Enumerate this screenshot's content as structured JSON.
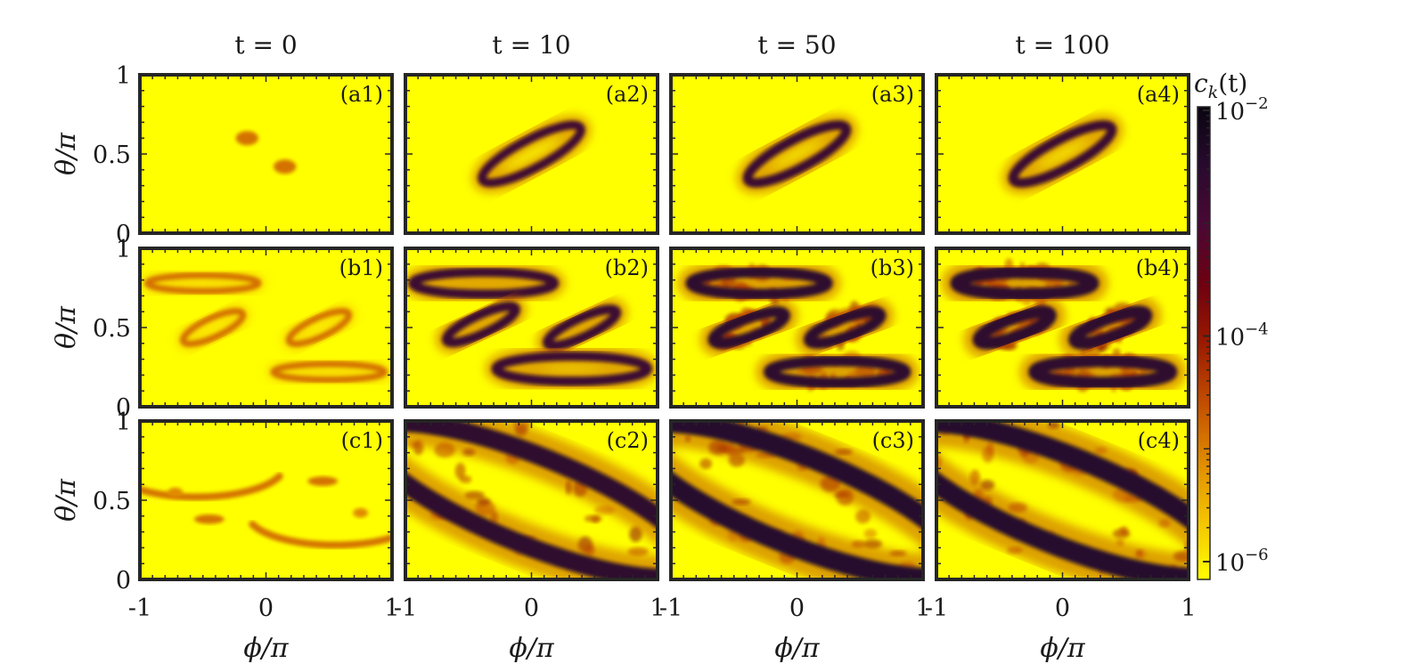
{
  "chart_data": {
    "type": "heatmap",
    "columns": [
      "t = 0",
      "t = 10",
      "t = 50",
      "t = 100"
    ],
    "rows": [
      "a",
      "b",
      "c"
    ],
    "panel_labels": [
      [
        "(a1)",
        "(a2)",
        "(a3)",
        "(a4)"
      ],
      [
        "(b1)",
        "(b2)",
        "(b3)",
        "(b4)"
      ],
      [
        "(c1)",
        "(c2)",
        "(c3)",
        "(c4)"
      ]
    ],
    "xlabel": "ϕ/π",
    "ylabel": "θ/π",
    "xlim": [
      -1,
      1
    ],
    "ylim": [
      0,
      1
    ],
    "xticks": [
      -1,
      0,
      1
    ],
    "xtick_labels": [
      "-1",
      "0",
      "1"
    ],
    "yticks": [
      0,
      0.5,
      1
    ],
    "ytick_labels": [
      "0",
      "0.5",
      "1"
    ],
    "colorbar": {
      "label": "c_k(t)",
      "label_text": "c",
      "label_sub": "k",
      "label_rest": "(t)",
      "scale": "log",
      "range": [
        1e-06,
        0.01
      ],
      "ticks": [
        {
          "value": 0.01,
          "base": "10",
          "exp": "−2"
        },
        {
          "value": 0.0001,
          "base": "10",
          "exp": "−4"
        },
        {
          "value": 1e-06,
          "base": "10",
          "exp": "−6"
        }
      ],
      "colormap": [
        "#ffff00",
        "#f4c300",
        "#e08a00",
        "#c24d00",
        "#9b1a00",
        "#6e0010",
        "#4a0835",
        "#280a2e",
        "#0a0510"
      ]
    },
    "panels": [
      [
        {
          "background_level": 0,
          "blobs": [
            {
              "phi": -0.15,
              "theta": 0.6,
              "rphi": 0.045,
              "rtheta": 0.045,
              "level": 0.3
            },
            {
              "phi": 0.15,
              "theta": 0.42,
              "rphi": 0.045,
              "rtheta": 0.045,
              "level": 0.3
            }
          ]
        },
        {
          "background_level": 0,
          "rings": [
            {
              "phi": 0.0,
              "theta": 0.5,
              "rphi": 0.22,
              "rtheta": 0.09,
              "angle": 28,
              "width": 0.055,
              "level": 0.78
            }
          ]
        },
        {
          "background_level": 0,
          "rings": [
            {
              "phi": 0.0,
              "theta": 0.5,
              "rphi": 0.22,
              "rtheta": 0.09,
              "angle": 28,
              "width": 0.06,
              "level": 0.8
            }
          ]
        },
        {
          "background_level": 0,
          "rings": [
            {
              "phi": 0.0,
              "theta": 0.5,
              "rphi": 0.22,
              "rtheta": 0.09,
              "angle": 28,
              "width": 0.06,
              "level": 0.8
            }
          ]
        }
      ],
      [
        {
          "background_level": 0,
          "rings": [
            {
              "phi": -0.5,
              "theta": 0.78,
              "rphi": 0.22,
              "rtheta": 0.05,
              "angle": 0,
              "width": 0.04,
              "level": 0.3
            },
            {
              "phi": -0.42,
              "theta": 0.5,
              "rphi": 0.13,
              "rtheta": 0.06,
              "angle": 25,
              "width": 0.04,
              "level": 0.3
            },
            {
              "phi": 0.42,
              "theta": 0.5,
              "rphi": 0.13,
              "rtheta": 0.06,
              "angle": 25,
              "width": 0.04,
              "level": 0.3
            },
            {
              "phi": 0.5,
              "theta": 0.22,
              "rphi": 0.22,
              "rtheta": 0.05,
              "angle": 0,
              "width": 0.04,
              "level": 0.3
            }
          ]
        },
        {
          "background_level": 0,
          "rings": [
            {
              "phi": -0.38,
              "theta": 0.78,
              "rphi": 0.28,
              "rtheta": 0.07,
              "angle": 0,
              "width": 0.06,
              "level": 0.8
            },
            {
              "phi": -0.4,
              "theta": 0.52,
              "rphi": 0.15,
              "rtheta": 0.06,
              "angle": 25,
              "width": 0.06,
              "level": 0.8
            },
            {
              "phi": 0.4,
              "theta": 0.5,
              "rphi": 0.15,
              "rtheta": 0.06,
              "angle": 25,
              "width": 0.06,
              "level": 0.8
            },
            {
              "phi": 0.32,
              "theta": 0.24,
              "rphi": 0.3,
              "rtheta": 0.08,
              "angle": 0,
              "width": 0.06,
              "level": 0.8
            }
          ]
        },
        {
          "background_level": 0,
          "noise": 0.35,
          "rings": [
            {
              "phi": -0.3,
              "theta": 0.78,
              "rphi": 0.27,
              "rtheta": 0.07,
              "angle": 0,
              "width": 0.07,
              "level": 0.85
            },
            {
              "phi": -0.38,
              "theta": 0.5,
              "rphi": 0.15,
              "rtheta": 0.06,
              "angle": 20,
              "width": 0.07,
              "level": 0.85
            },
            {
              "phi": 0.38,
              "theta": 0.5,
              "rphi": 0.15,
              "rtheta": 0.06,
              "angle": 20,
              "width": 0.07,
              "level": 0.85
            },
            {
              "phi": 0.32,
              "theta": 0.22,
              "rphi": 0.27,
              "rtheta": 0.07,
              "angle": 0,
              "width": 0.07,
              "level": 0.85
            }
          ]
        },
        {
          "background_level": 0,
          "noise": 0.55,
          "rings": [
            {
              "phi": -0.3,
              "theta": 0.78,
              "rphi": 0.27,
              "rtheta": 0.07,
              "angle": 0,
              "width": 0.08,
              "level": 0.85
            },
            {
              "phi": -0.38,
              "theta": 0.5,
              "rphi": 0.15,
              "rtheta": 0.06,
              "angle": 20,
              "width": 0.08,
              "level": 0.85
            },
            {
              "phi": 0.38,
              "theta": 0.5,
              "rphi": 0.15,
              "rtheta": 0.06,
              "angle": 20,
              "width": 0.08,
              "level": 0.85
            },
            {
              "phi": 0.32,
              "theta": 0.22,
              "rphi": 0.27,
              "rtheta": 0.07,
              "angle": 0,
              "width": 0.08,
              "level": 0.85
            }
          ]
        }
      ],
      [
        {
          "background_level": 0,
          "arcs": [
            {
              "phi": -0.55,
              "theta": 0.72,
              "rphi": 0.35,
              "rtheta": 0.2,
              "start": 200,
              "end": 340,
              "width": 0.045,
              "level": 0.3
            },
            {
              "phi": 0.55,
              "theta": 0.28,
              "rphi": 0.35,
              "rtheta": 0.2,
              "start": 20,
              "end": 160,
              "width": 0.045,
              "level": 0.3
            }
          ],
          "blobs": [
            {
              "phi": -0.72,
              "theta": 0.55,
              "rphi": 0.03,
              "rtheta": 0.03,
              "level": 0.25
            },
            {
              "phi": -0.45,
              "theta": 0.38,
              "rphi": 0.06,
              "rtheta": 0.03,
              "level": 0.3
            },
            {
              "phi": 0.45,
              "theta": 0.62,
              "rphi": 0.06,
              "rtheta": 0.03,
              "level": 0.3
            },
            {
              "phi": 0.75,
              "theta": 0.42,
              "rphi": 0.03,
              "rtheta": 0.03,
              "level": 0.25
            }
          ]
        },
        {
          "background_level": 0,
          "noise": 0.55,
          "rings": [
            {
              "phi": 0.0,
              "theta": 0.5,
              "rphi": 0.7,
              "rtheta": 0.28,
              "angle": -22,
              "width": 0.12,
              "level": 0.85
            }
          ]
        },
        {
          "background_level": 0,
          "noise": 0.7,
          "rings": [
            {
              "phi": 0.0,
              "theta": 0.5,
              "rphi": 0.7,
              "rtheta": 0.28,
              "angle": -22,
              "width": 0.13,
              "level": 0.88
            }
          ]
        },
        {
          "background_level": 0,
          "noise": 0.8,
          "rings": [
            {
              "phi": 0.0,
              "theta": 0.5,
              "rphi": 0.7,
              "rtheta": 0.28,
              "angle": -22,
              "width": 0.13,
              "level": 0.88
            }
          ]
        }
      ]
    ]
  }
}
